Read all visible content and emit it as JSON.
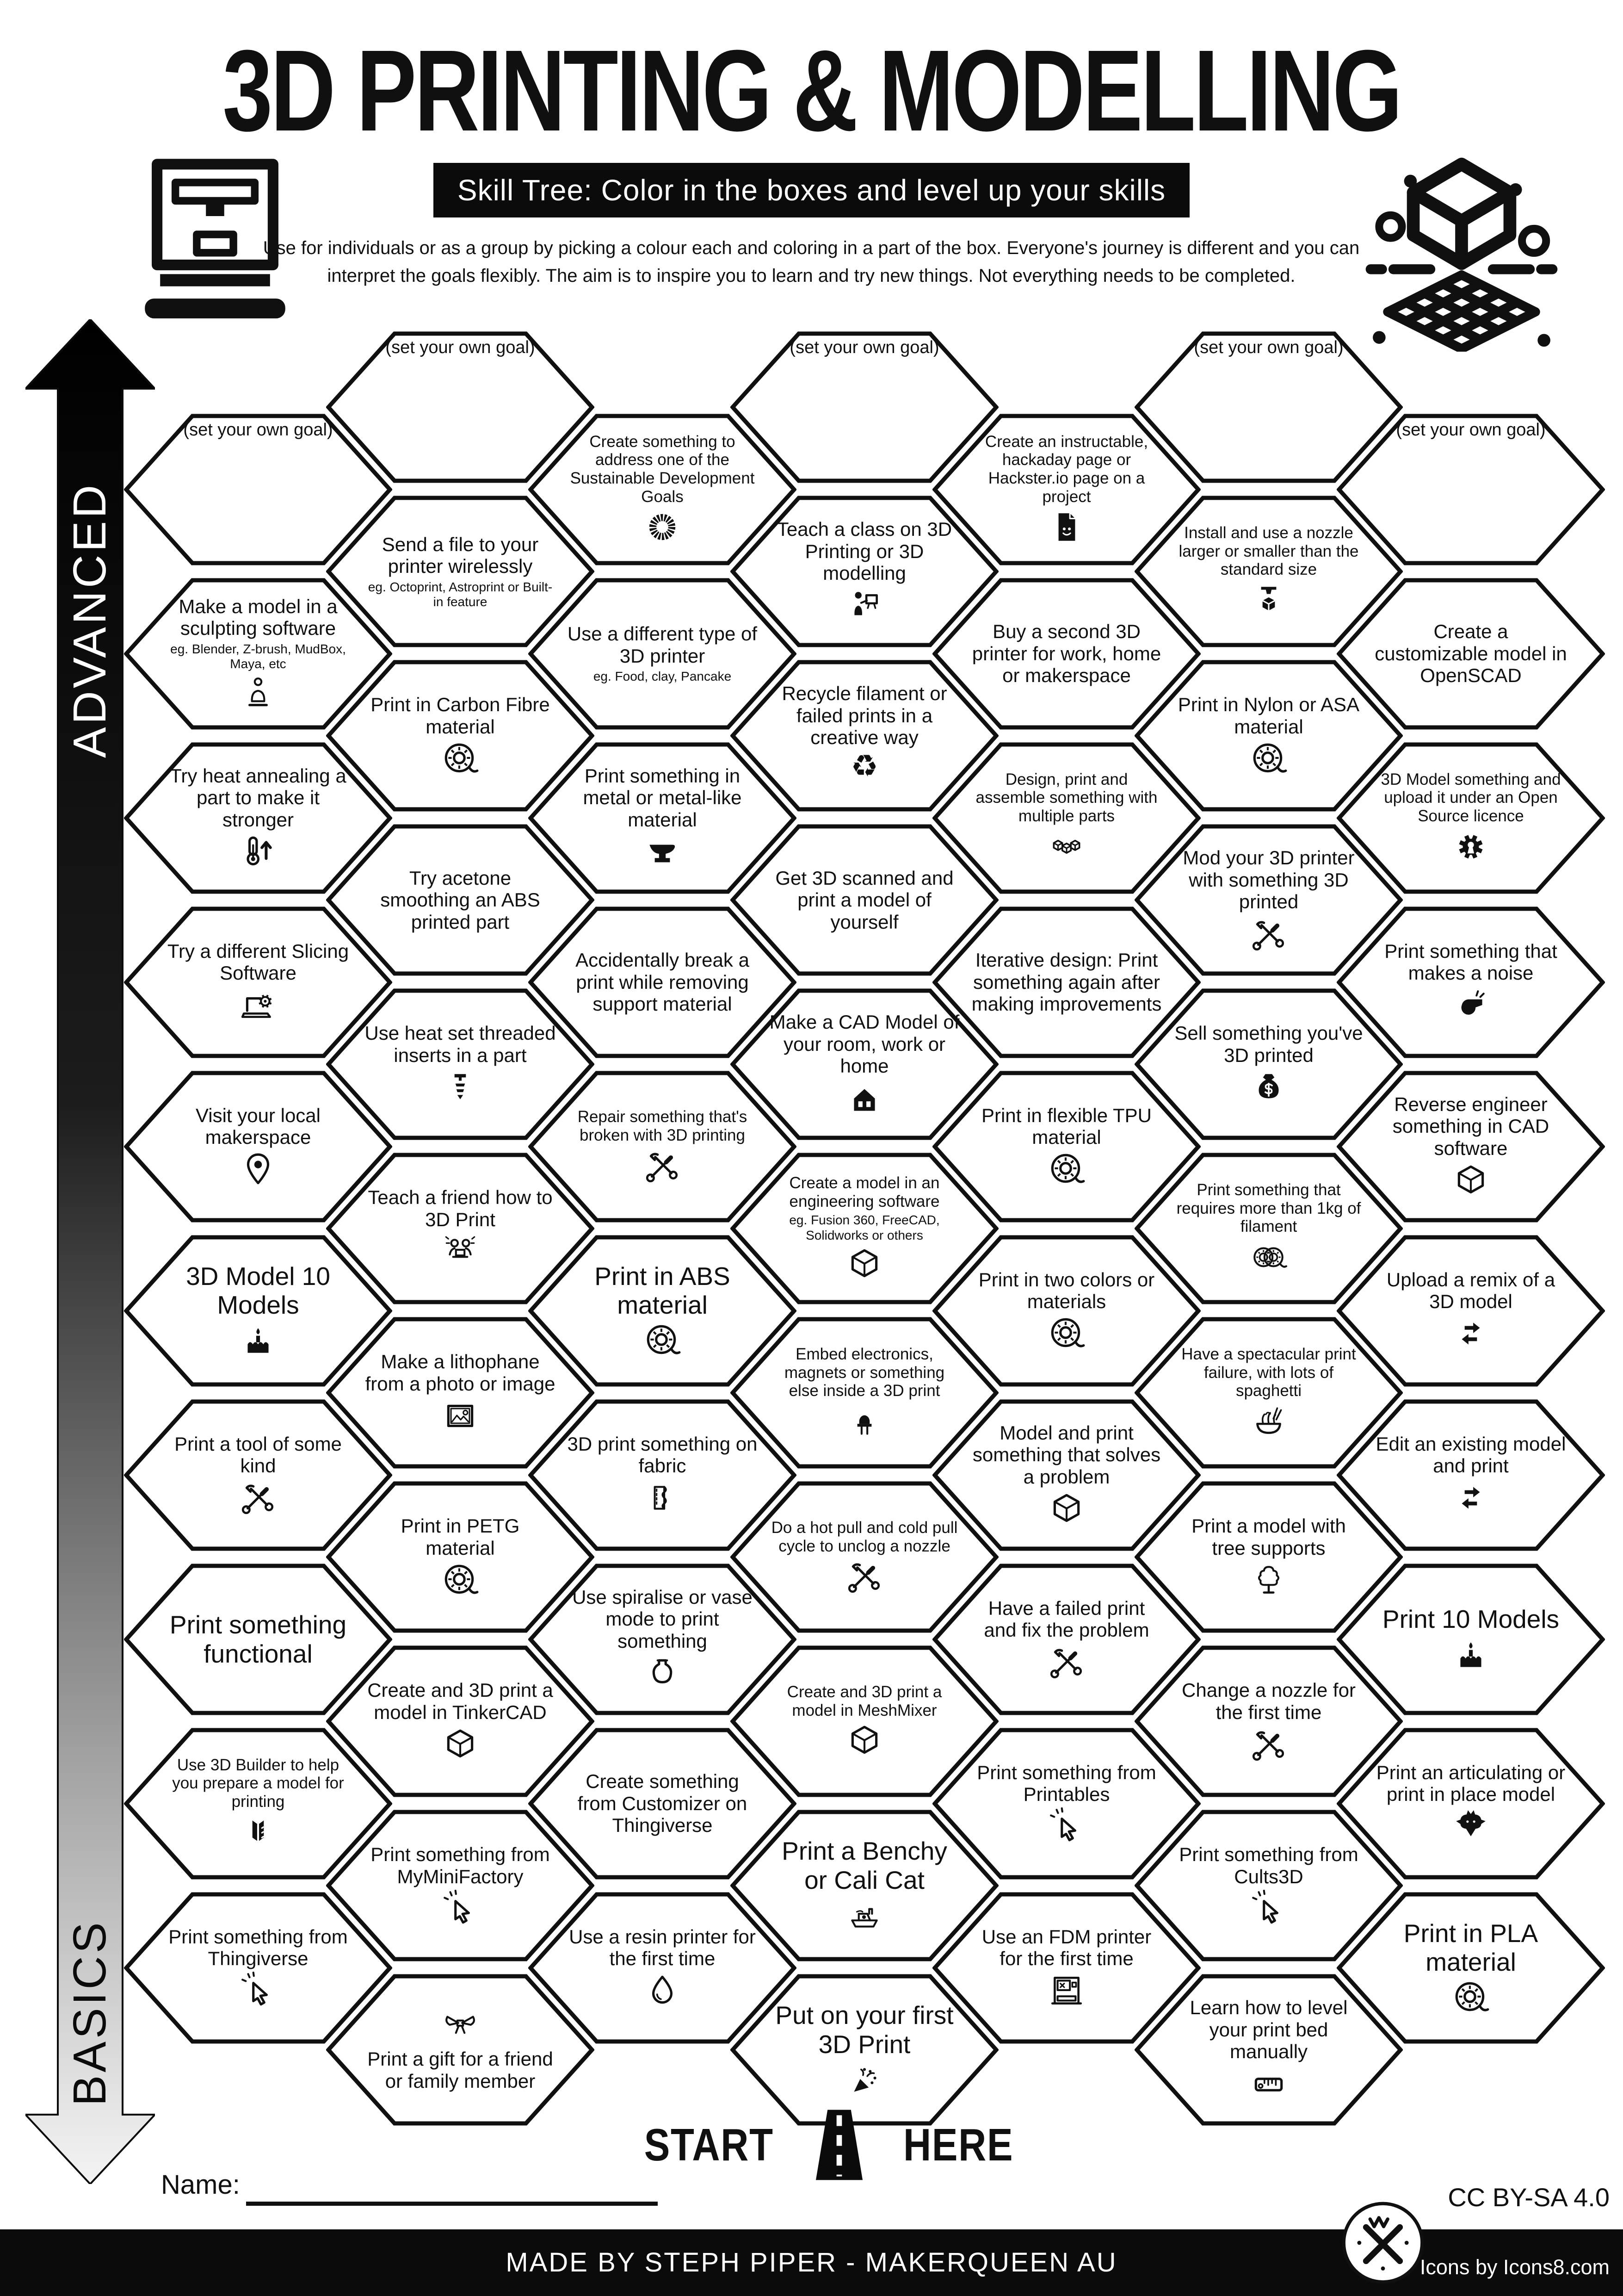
{
  "header": {
    "title": "3D PRINTING & MODELLING",
    "subtitle": "Skill Tree:  Color in the boxes and level up your skills",
    "desc1": "Use for individuals or as a group by picking a colour each and coloring in a part of the box.  Everyone's journey is different and you can",
    "desc2": "interpret the goals flexibly.  The aim is to inspire you to learn and try new things. Not everything needs to be completed."
  },
  "axis": {
    "advanced": "ADVANCED",
    "basics": "BASICS"
  },
  "start": {
    "start": "START",
    "here": "HERE"
  },
  "footer": {
    "name_label": "Name:",
    "license": "CC BY-SA 4.0",
    "credit": "MADE BY STEPH PIPER  -  MAKERQUEEN AU",
    "icons_credit": "Icons by Icons8.com"
  },
  "colors": {
    "ink": "#101010",
    "paper": "#ffffff"
  },
  "hexes": [
    {
      "col": 1,
      "row": 0,
      "goal": true,
      "label": "(set your own goal)"
    },
    {
      "col": 1,
      "row": 1,
      "label": "Make a model in a sculpting software",
      "sub": "eg. Blender, Z-brush, MudBox, Maya, etc",
      "icon": "statue"
    },
    {
      "col": 1,
      "row": 2,
      "label": "Try heat annealing a part to make it stronger",
      "icon": "thermometer-up"
    },
    {
      "col": 1,
      "row": 3,
      "label": "Try a different Slicing Software",
      "icon": "laptop-gear"
    },
    {
      "col": 1,
      "row": 4,
      "label": "Visit your local makerspace",
      "icon": "map-pin"
    },
    {
      "col": 1,
      "row": 5,
      "label": "3D Model 10 Models",
      "size": "lg",
      "icon": "cake"
    },
    {
      "col": 1,
      "row": 6,
      "label": "Print a tool of some kind",
      "icon": "tools"
    },
    {
      "col": 1,
      "row": 7,
      "label": "Print something functional",
      "size": "lg"
    },
    {
      "col": 1,
      "row": 8,
      "label": "Use 3D Builder to help you prepare a model for printing",
      "size": "sm",
      "icon": "builder"
    },
    {
      "col": 1,
      "row": 9,
      "label": "Print something from Thingiverse",
      "icon": "cursor"
    },
    {
      "col": 2,
      "row": 0,
      "goal": true,
      "label": "(set your own goal)"
    },
    {
      "col": 2,
      "row": 1,
      "label": "Send a file to your printer wirelessly",
      "sub": "eg. Octoprint, Astroprint or Built-in feature"
    },
    {
      "col": 2,
      "row": 2,
      "label": "Print in Carbon Fibre material",
      "icon": "spool"
    },
    {
      "col": 2,
      "row": 3,
      "label": "Try acetone smoothing an ABS printed part"
    },
    {
      "col": 2,
      "row": 4,
      "label": "Use heat set threaded inserts in a part",
      "icon": "screw"
    },
    {
      "col": 2,
      "row": 5,
      "label": "Teach a friend how to 3D Print",
      "icon": "friends-laptop"
    },
    {
      "col": 2,
      "row": 6,
      "label": "Make a lithophane from a photo or image",
      "icon": "image"
    },
    {
      "col": 2,
      "row": 7,
      "label": "Print in PETG material",
      "icon": "spool"
    },
    {
      "col": 2,
      "row": 8,
      "label": "Create and 3D print a model in TinkerCAD",
      "icon": "cube"
    },
    {
      "col": 2,
      "row": 9,
      "label": "Print something from MyMiniFactory",
      "icon": "cursor"
    },
    {
      "col": 2,
      "row": 10,
      "label": "Print a gift for a friend or family member",
      "icon": "bow",
      "icon_pos": "top"
    },
    {
      "col": 3,
      "row": 0,
      "label": "Create something to address one of the Sustainable Development Goals",
      "size": "sm",
      "icon": "sdg-wheel"
    },
    {
      "col": 3,
      "row": 1,
      "label": "Use a different type of 3D printer",
      "sub": "eg. Food, clay, Pancake"
    },
    {
      "col": 3,
      "row": 2,
      "label": "Print something in metal or metal-like material",
      "icon": "anvil"
    },
    {
      "col": 3,
      "row": 3,
      "label": "Accidentally break a print while removing support material"
    },
    {
      "col": 3,
      "row": 4,
      "label": "Repair something that's broken with 3D printing",
      "size": "sm",
      "icon": "tools"
    },
    {
      "col": 3,
      "row": 5,
      "label": "Print in ABS material",
      "size": "lg",
      "icon": "spool"
    },
    {
      "col": 3,
      "row": 6,
      "label": "3D print something on fabric",
      "icon": "fabric"
    },
    {
      "col": 3,
      "row": 7,
      "label": "Use spiralise or vase mode to print something",
      "icon": "vase"
    },
    {
      "col": 3,
      "row": 8,
      "label": "Create something from Customizer on Thingiverse"
    },
    {
      "col": 3,
      "row": 9,
      "label": "Use a resin printer for the first time",
      "icon": "droplet"
    },
    {
      "col": 4,
      "row": 0,
      "goal": true,
      "label": "(set your own goal)"
    },
    {
      "col": 4,
      "row": 1,
      "label": "Teach a class on 3D Printing or 3D modelling",
      "icon": "presenter"
    },
    {
      "col": 4,
      "row": 2,
      "label": "Recycle filament or failed prints in a creative way",
      "icon": "recycle"
    },
    {
      "col": 4,
      "row": 3,
      "label": "Get 3D scanned and print a model of yourself"
    },
    {
      "col": 4,
      "row": 4,
      "label": "Make a CAD Model of your room, work or home",
      "icon": "house"
    },
    {
      "col": 4,
      "row": 5,
      "label": "Create a model in an engineering software",
      "sub": "eg. Fusion 360, FreeCAD, Solidworks or others",
      "size": "sm",
      "icon": "cube"
    },
    {
      "col": 4,
      "row": 6,
      "label": "Embed electronics, magnets or something else inside a 3D print",
      "size": "sm",
      "icon": "led"
    },
    {
      "col": 4,
      "row": 7,
      "label": "Do a hot pull and cold pull cycle to unclog a nozzle",
      "size": "sm",
      "icon": "tools"
    },
    {
      "col": 4,
      "row": 8,
      "label": "Create and 3D print a model in MeshMixer",
      "size": "sm",
      "icon": "cube"
    },
    {
      "col": 4,
      "row": 9,
      "label": "Print a Benchy or Cali Cat",
      "size": "lg",
      "icon": "benchy"
    },
    {
      "col": 4,
      "row": 10,
      "label": "Put on your first 3D Print",
      "size": "lg",
      "icon": "party"
    },
    {
      "col": 5,
      "row": 0,
      "label": "Create an instructable, hackaday page or Hackster.io page on a project",
      "size": "sm",
      "icon": "document"
    },
    {
      "col": 5,
      "row": 1,
      "label": "Buy a second 3D printer for work, home or makerspace"
    },
    {
      "col": 5,
      "row": 2,
      "label": "Design, print and assemble something with multiple parts",
      "size": "sm",
      "icon": "cubes"
    },
    {
      "col": 5,
      "row": 3,
      "label": "Iterative design: Print something again after making improvements"
    },
    {
      "col": 5,
      "row": 4,
      "label": "Print in flexible TPU material",
      "icon": "spool"
    },
    {
      "col": 5,
      "row": 5,
      "label": "Print in two colors or materials",
      "icon": "spool"
    },
    {
      "col": 5,
      "row": 6,
      "label": "Model and print something that solves a problem",
      "icon": "cube"
    },
    {
      "col": 5,
      "row": 7,
      "label": "Have a failed print and fix the problem",
      "icon": "tools"
    },
    {
      "col": 5,
      "row": 8,
      "label": "Print something from Printables",
      "icon": "cursor"
    },
    {
      "col": 5,
      "row": 9,
      "label": "Use an FDM printer for the first time",
      "icon": "printer"
    },
    {
      "col": 6,
      "row": 0,
      "goal": true,
      "label": "(set your own goal)"
    },
    {
      "col": 6,
      "row": 1,
      "label": "Install and use a nozzle larger or smaller than the standard size",
      "size": "sm",
      "icon": "nozzle"
    },
    {
      "col": 6,
      "row": 2,
      "label": "Print in Nylon or ASA material",
      "icon": "spool"
    },
    {
      "col": 6,
      "row": 3,
      "label": "Mod your 3D printer with something 3D printed",
      "icon": "tools"
    },
    {
      "col": 6,
      "row": 4,
      "label": "Sell something you've 3D printed",
      "icon": "money-bag"
    },
    {
      "col": 6,
      "row": 5,
      "label": "Print something that requires more than 1kg of filament",
      "size": "sm",
      "icon": "spools"
    },
    {
      "col": 6,
      "row": 6,
      "label": "Have a spectacular print failure, with lots of spaghetti",
      "size": "sm",
      "icon": "noodles"
    },
    {
      "col": 6,
      "row": 7,
      "label": "Print a model with tree supports",
      "icon": "tree"
    },
    {
      "col": 6,
      "row": 8,
      "label": "Change a nozzle for the first time",
      "icon": "tools"
    },
    {
      "col": 6,
      "row": 9,
      "label": "Print something from Cults3D",
      "icon": "cursor"
    },
    {
      "col": 6,
      "row": 10,
      "label": "Learn how to level your print bed manually",
      "icon": "ruler"
    },
    {
      "col": 7,
      "row": 0,
      "goal": true,
      "label": "(set your own goal)"
    },
    {
      "col": 7,
      "row": 1,
      "label": "Create a customizable model in OpenSCAD"
    },
    {
      "col": 7,
      "row": 2,
      "label": "3D Model something and upload it under an Open Source licence",
      "size": "sm",
      "icon": "os-gear"
    },
    {
      "col": 7,
      "row": 3,
      "label": "Print something that makes a noise",
      "icon": "whistle"
    },
    {
      "col": 7,
      "row": 4,
      "label": "Reverse engineer something in CAD software",
      "icon": "cube"
    },
    {
      "col": 7,
      "row": 5,
      "label": "Upload a remix of a 3D model",
      "icon": "remix"
    },
    {
      "col": 7,
      "row": 6,
      "label": "Edit an existing model and print",
      "icon": "remix"
    },
    {
      "col": 7,
      "row": 7,
      "label": "Print 10 Models",
      "size": "lg",
      "icon": "cake"
    },
    {
      "col": 7,
      "row": 8,
      "label": "Print an articulating or print in place model",
      "icon": "dragon"
    },
    {
      "col": 7,
      "row": 9,
      "label": "Print in PLA material",
      "size": "lg",
      "icon": "spool"
    }
  ]
}
